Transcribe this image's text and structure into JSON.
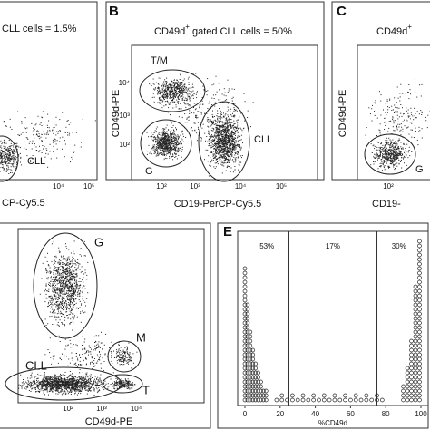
{
  "panels": {
    "a": {
      "title": "CLL cells = 1.5%",
      "gate": "CLL",
      "xlabel": "CP-Cy5.5",
      "xticks": [
        "10⁴",
        "10⁵"
      ]
    },
    "b": {
      "letter": "B",
      "title_main": "CD49d",
      "title_sup": "+",
      "title_rest": " gated CLL cells = 50%",
      "gates": [
        "T/M",
        "G",
        "CLL"
      ],
      "ylabel": "CD49d-PE",
      "xlabel": "CD19-PerCP-Cy5.5",
      "xticks": [
        "10²",
        "10³",
        "10⁴",
        "10⁵"
      ],
      "yticks": [
        "10⁴",
        "10³",
        "10²"
      ]
    },
    "c": {
      "letter": "C",
      "title_main": "CD49d",
      "title_sup": "+",
      "gate": "G",
      "ylabel": "CD49d-PE",
      "xlabel": "CD19-",
      "xticks": [
        "10²"
      ]
    },
    "d": {
      "gates": [
        "G",
        "M",
        "CLL",
        "T"
      ],
      "xlabel": "CD49d-PE",
      "xticks": [
        "10²",
        "10³",
        "10⁴"
      ]
    },
    "e": {
      "letter": "E",
      "percentages": [
        "53%",
        "17%",
        "30%"
      ],
      "xlabel": "%CD49d",
      "xticks": [
        0,
        20,
        40,
        60,
        80,
        100
      ],
      "xlim": [
        0,
        100
      ],
      "dividers": [
        25,
        75
      ]
    }
  }
}
